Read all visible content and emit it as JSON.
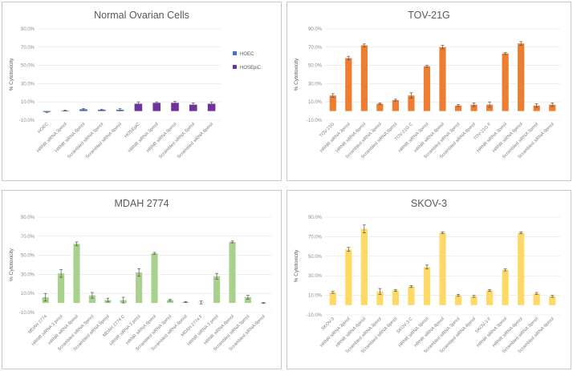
{
  "chart_data": [
    {
      "id": "normal",
      "type": "bar",
      "title": "Normal Ovarian Cells",
      "ylabel": "% Cytotoxicity",
      "ylim": [
        -10,
        90
      ],
      "yticks": [
        "-10.0%",
        "10.0%",
        "30.0%",
        "50.0%",
        "70.0%",
        "90.0%"
      ],
      "ytick_values": [
        -10,
        10,
        30,
        50,
        70,
        90
      ],
      "legend": "right",
      "categories": [
        "HOEC",
        "HRNR siRNA 3pmol",
        "HRNR siRNA 6pmol",
        "Scrambled siRNA 3pmol",
        "Scrambled siRNA 6pmol",
        "HOSEpiC",
        "HRNR siRNA 3pmol",
        "HRNR siRNA 6pmol",
        "Scrambled siRNA 3pmol",
        "Scrambled siRNA 6pmol"
      ],
      "series": [
        {
          "name": "HOEC",
          "color": "#4472c4",
          "values": [
            -1,
            0.5,
            2,
            1.5,
            1.5,
            null,
            null,
            null,
            null,
            null
          ],
          "errors": [
            0.5,
            0.5,
            0.8,
            0.6,
            1.2,
            null,
            null,
            null,
            null,
            null
          ]
        },
        {
          "name": "HOSEpiC",
          "color": "#7030a0",
          "values": [
            null,
            null,
            null,
            null,
            null,
            8,
            9,
            9,
            7,
            8
          ],
          "errors": [
            null,
            null,
            null,
            null,
            null,
            2,
            1,
            1.5,
            2,
            2
          ]
        }
      ]
    },
    {
      "id": "tov",
      "type": "bar",
      "title": "TOV-21G",
      "ylabel": "% Cytotoxicity",
      "ylim": [
        -10,
        90
      ],
      "yticks": [
        "-10.0%",
        "10.0%",
        "30.0%",
        "50.0%",
        "70.0%",
        "90.0%"
      ],
      "ytick_values": [
        -10,
        10,
        30,
        50,
        70,
        90
      ],
      "color": "#ed7d31",
      "categories": [
        "TOV-21G",
        "HRNR siRNA 3pmol",
        "HRNR siRNA 6pmol",
        "Scrambled siRNA 3pmol",
        "Scrambled siRNA 6pmol",
        "TOV-21G C",
        "HRNR siRNA 3pmol",
        "HRNR siRNA 6pmol",
        "Scrambled siRNA 3pmol",
        "Scrambled siRNA 6pmol",
        "TOV-21G F",
        "HRNR siRNA 3pmol",
        "HRNR siRNA 6pmol",
        "Scrambled siRNA 3pmol",
        "Scrambled siRNA 6pmol"
      ],
      "values": [
        17,
        58,
        72,
        8,
        12,
        17,
        49,
        70,
        6,
        7,
        7,
        63,
        74,
        6,
        7
      ],
      "errors": [
        2,
        2,
        1.5,
        1,
        1,
        3,
        1,
        2,
        1,
        2,
        3,
        1,
        2,
        2,
        2
      ]
    },
    {
      "id": "mdah",
      "type": "bar",
      "title": "MDAH 2774",
      "ylabel": "% Cytotoxicity",
      "ylim": [
        -10,
        90
      ],
      "yticks": [
        "-10.0%",
        "10.0%",
        "30.0%",
        "50.0%",
        "70.0%",
        "90.0%"
      ],
      "ytick_values": [
        -10,
        10,
        30,
        50,
        70,
        90
      ],
      "color": "#a9d18e",
      "categories": [
        "MDAH 2774",
        "HRNR siRNA 3 pmol",
        "HRNR siRNA 6pmol",
        "Scrambled siRNA 3pmol",
        "Scrambled siRNA 6pmol",
        "MDAH 2774 C",
        "HRNR siRNA 3 pmol",
        "HRNR siRNA 6pmol",
        "Scrambled siRNA 3pmol",
        "Scrambled siRNA 6pmol",
        "MDAH 2774 F",
        "HRNR siRNA 3 pmol",
        "HRNR siRNA 6pmol",
        "Scrambled siRNA 3pmol",
        "Scrambled siRNA 6pmol"
      ],
      "values": [
        6,
        31,
        62,
        8,
        3,
        3,
        32,
        52,
        3,
        1,
        0.5,
        28,
        64,
        6,
        0
      ],
      "errors": [
        4,
        4,
        2,
        3,
        2,
        3,
        4,
        1,
        1,
        0.5,
        1.5,
        3,
        1,
        2,
        0.5
      ]
    },
    {
      "id": "skov",
      "type": "bar",
      "title": "SKOV-3",
      "ylabel": "% Cytotoxicity",
      "ylim": [
        -10,
        90
      ],
      "yticks": [
        "-10.0%",
        "10.0%",
        "30.0%",
        "50.0%",
        "70.0%",
        "90.0%"
      ],
      "ytick_values": [
        -10,
        10,
        30,
        50,
        70,
        90
      ],
      "color": "#ffd966",
      "categories": [
        "SKOV-3",
        "HRNR siRNA 3pmol",
        "HRNR siRNA 6pmol",
        "Scrambled siRNA 3pmol",
        "Scrambled siRNA 6pmol",
        "SKOV-3 C",
        "HRNR siRNA 3pmol",
        "HRNR siRNA 6pmol",
        "Scrambled siRNA 3pmol",
        "Scrambled siRNA 6pmol",
        "SKOV-3 F",
        "HRNR siRNA 3pmol",
        "HRNR siRNA 6pmol",
        "Scrambled siRNA 3pmol",
        "Scrambled siRNA 6pmol"
      ],
      "values": [
        13,
        57,
        78,
        14,
        15,
        19,
        39,
        74,
        10,
        9,
        15,
        36,
        74,
        12,
        9
      ],
      "errors": [
        1,
        2,
        4,
        3,
        1,
        1,
        2,
        1,
        1,
        1,
        1,
        1,
        1,
        1,
        1
      ]
    }
  ]
}
